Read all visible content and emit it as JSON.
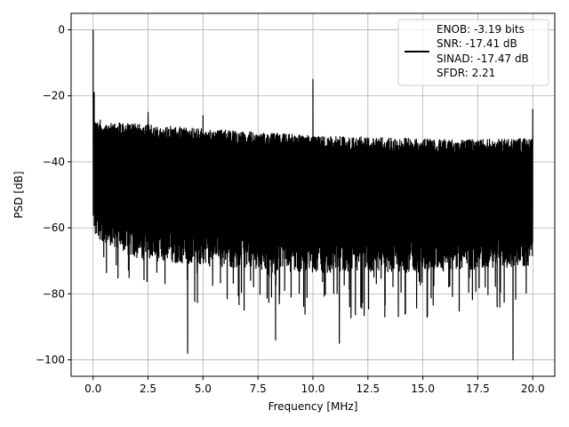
{
  "chart_data": {
    "type": "line",
    "title": "",
    "xlabel": "Frequency [MHz]",
    "ylabel": "PSD [dB]",
    "xlim": [
      -1.0,
      21.0
    ],
    "ylim": [
      -105,
      5
    ],
    "grid": true,
    "x_ticks": [
      0.0,
      2.5,
      5.0,
      7.5,
      10.0,
      12.5,
      15.0,
      17.5,
      20.0
    ],
    "x_tick_labels": [
      "0.0",
      "2.5",
      "5.0",
      "7.5",
      "10.0",
      "12.5",
      "15.0",
      "17.5",
      "20.0"
    ],
    "y_ticks": [
      0,
      -20,
      -40,
      -60,
      -80,
      -100
    ],
    "y_tick_labels": [
      "0",
      "−20",
      "−40",
      "−60",
      "−80",
      "−100"
    ],
    "legend": {
      "placement": "upper right",
      "entries": [
        "ENOB: -3.19 bits",
        "SNR: -17.41 dB",
        "SINAD: -17.47 dB",
        "SFDR: 2.21"
      ]
    },
    "series": [
      {
        "color": "#000000",
        "x_range": [
          0.0,
          20.0
        ],
        "noise_upper_envelope": [
          [
            0.0,
            -27
          ],
          [
            1.0,
            -28
          ],
          [
            5.0,
            -30
          ],
          [
            10.0,
            -32
          ],
          [
            15.0,
            -33
          ],
          [
            20.0,
            -33
          ]
        ],
        "noise_lower_envelope": [
          [
            0.0,
            -57
          ],
          [
            2.0,
            -64
          ],
          [
            5.0,
            -66
          ],
          [
            10.0,
            -68
          ],
          [
            15.0,
            -68
          ],
          [
            20.0,
            -66
          ]
        ],
        "peaks": [
          {
            "x": 0.0,
            "y": 0
          },
          {
            "x": 0.05,
            "y": -19
          },
          {
            "x": 2.5,
            "y": -25
          },
          {
            "x": 5.0,
            "y": -26
          },
          {
            "x": 10.0,
            "y": -15
          },
          {
            "x": 20.0,
            "y": -24
          }
        ],
        "dips": [
          {
            "x": 4.3,
            "y": -98
          },
          {
            "x": 8.3,
            "y": -94
          },
          {
            "x": 11.2,
            "y": -95
          },
          {
            "x": 19.1,
            "y": -100
          }
        ]
      }
    ]
  }
}
